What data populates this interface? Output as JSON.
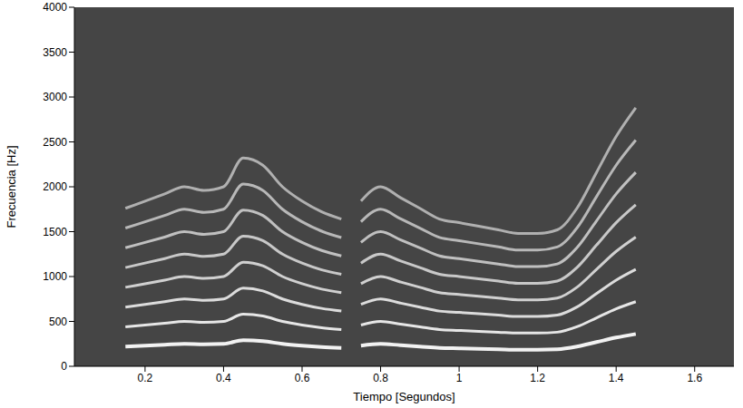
{
  "chart_data": {
    "type": "line",
    "x_label": "Tiempo [Segundos]",
    "y_label": "Frecuencia [Hz]",
    "x": [
      0.15,
      0.2,
      0.25,
      0.3,
      0.35,
      0.4,
      0.45,
      0.5,
      0.55,
      0.6,
      0.65,
      0.7,
      0.73,
      0.75,
      0.8,
      0.85,
      0.9,
      0.95,
      1.0,
      1.05,
      1.1,
      1.15,
      1.2,
      1.25,
      1.3,
      1.35,
      1.4,
      1.45
    ],
    "series": [
      {
        "color": "#f2f2f2",
        "values": [
          220,
          230,
          240,
          250,
          245,
          250,
          290,
          280,
          250,
          230,
          215,
          205,
          null,
          230,
          250,
          235,
          220,
          205,
          200,
          195,
          190,
          185,
          185,
          190,
          220,
          270,
          320,
          360
        ]
      },
      {
        "color": "#e6e6e6",
        "values": [
          440,
          460,
          480,
          500,
          490,
          500,
          580,
          560,
          500,
          460,
          430,
          410,
          null,
          460,
          500,
          470,
          440,
          410,
          400,
          390,
          380,
          370,
          370,
          380,
          440,
          540,
          640,
          720
        ]
      },
      {
        "color": "#dcdcdc",
        "values": [
          660,
          690,
          720,
          750,
          735,
          750,
          870,
          840,
          750,
          690,
          645,
          615,
          null,
          690,
          750,
          705,
          660,
          615,
          600,
          585,
          570,
          555,
          555,
          570,
          660,
          810,
          960,
          1080
        ]
      },
      {
        "color": "#d0d0d0",
        "values": [
          880,
          920,
          960,
          1000,
          980,
          1000,
          1160,
          1120,
          1000,
          920,
          860,
          820,
          null,
          920,
          1000,
          940,
          880,
          820,
          800,
          780,
          760,
          740,
          740,
          760,
          880,
          1080,
          1280,
          1440
        ]
      },
      {
        "color": "#c8c8c8",
        "values": [
          1100,
          1150,
          1200,
          1250,
          1225,
          1250,
          1450,
          1400,
          1250,
          1150,
          1075,
          1025,
          null,
          1150,
          1250,
          1175,
          1100,
          1025,
          1000,
          975,
          950,
          925,
          925,
          950,
          1100,
          1350,
          1600,
          1800
        ]
      },
      {
        "color": "#c0c0c0",
        "values": [
          1320,
          1380,
          1440,
          1500,
          1470,
          1500,
          1740,
          1680,
          1500,
          1380,
          1290,
          1230,
          null,
          1380,
          1500,
          1410,
          1320,
          1230,
          1200,
          1170,
          1140,
          1110,
          1110,
          1140,
          1320,
          1620,
          1920,
          2160
        ]
      },
      {
        "color": "#b8b8b8",
        "values": [
          1540,
          1610,
          1680,
          1750,
          1715,
          1750,
          2030,
          1960,
          1750,
          1610,
          1505,
          1435,
          null,
          1610,
          1750,
          1645,
          1540,
          1435,
          1400,
          1365,
          1330,
          1295,
          1295,
          1330,
          1540,
          1890,
          2240,
          2520
        ]
      },
      {
        "color": "#b0b0b0",
        "values": [
          1760,
          1840,
          1920,
          2000,
          1960,
          2000,
          2320,
          2240,
          2000,
          1840,
          1720,
          1640,
          null,
          1840,
          2000,
          1880,
          1760,
          1640,
          1600,
          1560,
          1520,
          1480,
          1480,
          1520,
          1760,
          2160,
          2560,
          2880
        ]
      }
    ],
    "xlim": [
      0.02,
      1.7
    ],
    "xticks": [
      0.2,
      0.4,
      0.6,
      0.8,
      1,
      1.2,
      1.4,
      1.6
    ],
    "ylim": [
      0,
      4000
    ],
    "yticks": [
      0,
      500,
      1000,
      1500,
      2000,
      2500,
      3000,
      3500,
      4000
    ],
    "grid": false
  }
}
